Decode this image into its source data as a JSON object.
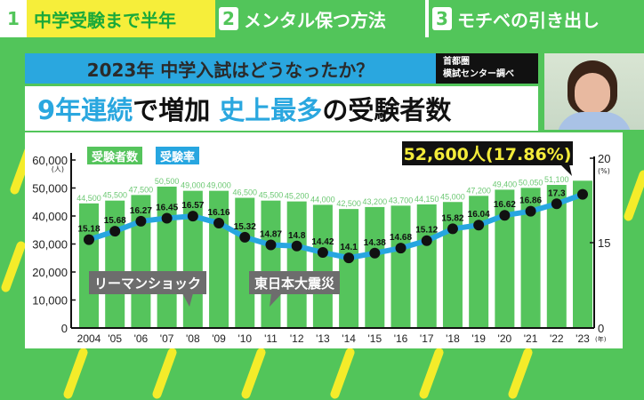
{
  "tabs": [
    {
      "num": "1",
      "label": "中学受験まで半年",
      "active": true
    },
    {
      "num": "2",
      "label": "メンタル保つ方法",
      "active": false
    },
    {
      "num": "3",
      "label": "モチベの引き出し",
      "active": false
    }
  ],
  "title": "2023年 中学入試はどうなったか？",
  "source": [
    "首都圏",
    "模試センター調べ"
  ],
  "headline": {
    "p1": "9年連続",
    "p2": "で増加 ",
    "p3": "史上最多",
    "p4": "の受験者数"
  },
  "colors": {
    "bar": "#55c45c",
    "line": "#27a6e0",
    "accent_blue": "#2aa7df",
    "callout_text": "#f4ec3a",
    "background": "#52c55a"
  },
  "chart_data": {
    "type": "bar+line",
    "legend": [
      "受験者数",
      "受験率"
    ],
    "legend_placement": "top-left",
    "categories": [
      "2004",
      "'05",
      "'06",
      "'07",
      "'08",
      "'09",
      "'10",
      "'11",
      "'12",
      "'13",
      "'14",
      "'15",
      "'16",
      "'17",
      "'18",
      "'19",
      "'20",
      "'21",
      "'22",
      "'23"
    ],
    "x_unit": "(年)",
    "series": [
      {
        "name": "受験者数",
        "type": "bar",
        "axis": "left",
        "values": [
          44500,
          45500,
          47500,
          50500,
          49000,
          49000,
          46500,
          45500,
          45200,
          44000,
          42500,
          43200,
          43700,
          44150,
          45000,
          47200,
          49400,
          50050,
          51100,
          52600
        ],
        "labels": [
          "44,500",
          "45,500",
          "47,500",
          "50,500",
          "49,000",
          "49,000",
          "46,500",
          "45,500",
          "45,200",
          "44,000",
          "42,500",
          "43,200",
          "43,700",
          "44,150",
          "45,000",
          "47,200",
          "49,400",
          "50,050",
          "51,100",
          ""
        ]
      },
      {
        "name": "受験率",
        "type": "line",
        "axis": "right",
        "values": [
          15.18,
          15.68,
          16.27,
          16.45,
          16.57,
          16.16,
          15.32,
          14.87,
          14.8,
          14.42,
          14.1,
          14.38,
          14.68,
          15.12,
          15.82,
          16.04,
          16.62,
          16.86,
          17.3,
          17.86
        ],
        "labels": [
          "15.18",
          "15.68",
          "16.27",
          "16.45",
          "16.57",
          "16.16",
          "15.32",
          "14.87",
          "14.8",
          "14.42",
          "14.1",
          "14.38",
          "14.68",
          "15.12",
          "15.82",
          "16.04",
          "16.62",
          "16.86",
          "17.3",
          ""
        ]
      }
    ],
    "left_axis": {
      "unit": "(人)",
      "ylim": [
        0,
        60000
      ],
      "ticks": [
        "0",
        "10,000",
        "20,000",
        "30,000",
        "40,000",
        "50,000",
        "60,000"
      ]
    },
    "right_axis": {
      "unit": "(%)",
      "ticks": [
        "0",
        "15",
        "20"
      ],
      "broken": true
    },
    "callout": "52,600人(17.86%)",
    "annotations": [
      {
        "text": "リーマンショック",
        "year": "'08"
      },
      {
        "text": "東日本大震災",
        "year": "'11"
      }
    ]
  }
}
